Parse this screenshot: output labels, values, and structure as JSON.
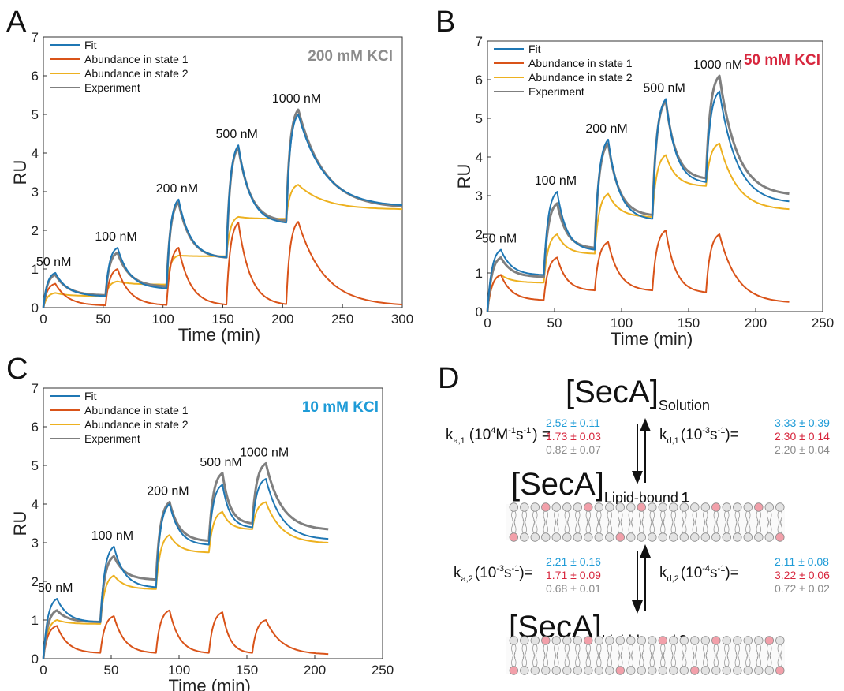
{
  "chart_data": [
    {
      "panel": "A",
      "type": "line",
      "condition": "200 mM KCl",
      "condition_color": "#8c8c8c",
      "xlabel": "Time (min)",
      "ylabel": "RU",
      "xlim": [
        0,
        300
      ],
      "ylim": [
        0,
        7
      ],
      "xticks": [
        0,
        50,
        100,
        150,
        200,
        250,
        300
      ],
      "yticks": [
        0,
        1,
        2,
        3,
        4,
        5,
        6,
        7
      ],
      "grid": false,
      "legend_position": "top-left",
      "injections": [
        {
          "start": 0,
          "stop": 10,
          "label": "50 nM"
        },
        {
          "start": 52,
          "stop": 62,
          "label": "100 nM"
        },
        {
          "start": 103,
          "stop": 113,
          "label": "200 nM"
        },
        {
          "start": 153,
          "stop": 163,
          "label": "500 nM"
        },
        {
          "start": 203,
          "stop": 213,
          "label": "1000 nM"
        }
      ],
      "x_end": 300,
      "series": [
        {
          "name": "Fit",
          "color": "#1f77b4",
          "peaks": [
            0.9,
            1.55,
            2.8,
            4.2,
            5.0
          ],
          "troughs": [
            0.3,
            0.5,
            1.3,
            2.2
          ],
          "end": 2.65
        },
        {
          "name": "Abundance in state 1",
          "color": "#d95319",
          "peaks": [
            0.62,
            1.0,
            1.55,
            2.2,
            2.22
          ],
          "troughs": [
            0.06,
            0.07,
            0.08,
            0.09
          ],
          "end": 0.08
        },
        {
          "name": "Abundance in state 2",
          "color": "#edb120",
          "peaks": [
            0.38,
            0.68,
            1.35,
            2.35,
            3.18
          ],
          "troughs": [
            0.3,
            0.6,
            1.33,
            2.3
          ],
          "end": 2.55
        },
        {
          "name": "Experiment",
          "color": "#7f7f7f",
          "peaks": [
            0.85,
            1.42,
            2.72,
            4.15,
            5.12
          ],
          "troughs": [
            0.32,
            0.55,
            1.3,
            2.25
          ],
          "end": 2.62
        }
      ]
    },
    {
      "panel": "B",
      "type": "line",
      "condition": "50 mM KCl",
      "condition_color": "#d7263d",
      "xlabel": "Time (min)",
      "ylabel": "RU",
      "xlim": [
        0,
        250
      ],
      "ylim": [
        0,
        7
      ],
      "xticks": [
        0,
        50,
        100,
        150,
        200,
        250
      ],
      "yticks": [
        0,
        1,
        2,
        3,
        4,
        5,
        6,
        7
      ],
      "grid": false,
      "legend_position": "top-left",
      "injections": [
        {
          "start": 0,
          "stop": 10,
          "label": "50 nM"
        },
        {
          "start": 42,
          "stop": 52,
          "label": "100 nM"
        },
        {
          "start": 80,
          "stop": 90,
          "label": "200 nM"
        },
        {
          "start": 123,
          "stop": 133,
          "label": "500 nM"
        },
        {
          "start": 163,
          "stop": 173,
          "label": "1000 nM"
        }
      ],
      "x_end": 225,
      "series": [
        {
          "name": "Fit",
          "color": "#1f77b4",
          "peaks": [
            1.6,
            3.1,
            4.45,
            5.5,
            5.7
          ],
          "troughs": [
            0.95,
            1.6,
            2.4,
            3.35
          ],
          "end": 2.85
        },
        {
          "name": "Abundance in state 1",
          "color": "#d95319",
          "peaks": [
            0.95,
            1.4,
            1.8,
            2.1,
            2.0
          ],
          "troughs": [
            0.3,
            0.55,
            0.55,
            0.5
          ],
          "end": 0.25
        },
        {
          "name": "Abundance in state 2",
          "color": "#edb120",
          "peaks": [
            0.95,
            2.0,
            3.05,
            4.05,
            4.35
          ],
          "troughs": [
            0.75,
            1.5,
            2.45,
            3.25
          ],
          "end": 2.65
        },
        {
          "name": "Experiment",
          "color": "#7f7f7f",
          "peaks": [
            1.4,
            2.8,
            4.35,
            5.45,
            6.1
          ],
          "troughs": [
            0.9,
            1.65,
            2.5,
            3.45
          ],
          "end": 3.05
        }
      ]
    },
    {
      "panel": "C",
      "type": "line",
      "condition": "10 mM KCl",
      "condition_color": "#1e9bd7",
      "xlabel": "Time (min)",
      "ylabel": "RU",
      "xlim": [
        0,
        250
      ],
      "ylim": [
        0,
        7
      ],
      "xticks": [
        0,
        50,
        100,
        150,
        200,
        250
      ],
      "yticks": [
        0,
        1,
        2,
        3,
        4,
        5,
        6,
        7
      ],
      "grid": false,
      "legend_position": "top-left",
      "injections": [
        {
          "start": 0,
          "stop": 10,
          "label": "50 nM"
        },
        {
          "start": 42,
          "stop": 52,
          "label": "100 nM"
        },
        {
          "start": 83,
          "stop": 93,
          "label": "200 nM"
        },
        {
          "start": 122,
          "stop": 132,
          "label": "500 nM"
        },
        {
          "start": 154,
          "stop": 164,
          "label": "1000 nM"
        }
      ],
      "x_end": 210,
      "series": [
        {
          "name": "Fit",
          "color": "#1f77b4",
          "peaks": [
            1.55,
            2.9,
            4.0,
            4.5,
            4.65
          ],
          "troughs": [
            0.95,
            1.85,
            2.95,
            3.4
          ],
          "end": 3.1
        },
        {
          "name": "Abundance in state 1",
          "color": "#d95319",
          "peaks": [
            0.85,
            1.1,
            1.25,
            1.2,
            1.0
          ],
          "troughs": [
            0.15,
            0.15,
            0.15,
            0.15
          ],
          "end": 0.12
        },
        {
          "name": "Abundance in state 2",
          "color": "#edb120",
          "peaks": [
            1.0,
            2.15,
            3.2,
            3.8,
            4.05
          ],
          "troughs": [
            0.9,
            1.8,
            2.75,
            3.35
          ],
          "end": 3.0
        },
        {
          "name": "Experiment",
          "color": "#7f7f7f",
          "peaks": [
            1.25,
            2.65,
            4.05,
            4.8,
            5.05
          ],
          "troughs": [
            0.95,
            2.05,
            3.05,
            3.5
          ],
          "end": 3.35
        }
      ]
    }
  ],
  "panel_letters": {
    "a": "A",
    "b": "B",
    "c": "C",
    "d": "D"
  },
  "scheme": {
    "solution_main": "[SecA]",
    "solution_sub": "Solution",
    "bound1_main": "[SecA]",
    "bound1_sub": "Lipid-bound",
    "bound1_num": "1",
    "bound2_main": "[SecA]",
    "bound2_sub": "Lipid-bound",
    "bound2_num": "2",
    "ka1": {
      "symbol": "k",
      "sub": "a,1",
      "units_pre": "(10",
      "units_exp1": "4",
      "units_mid": "M",
      "units_exp2": "-1",
      "units_s": "s",
      "units_exp3": "-1",
      "units_post": ") =",
      "values": [
        {
          "text": "2.52 ± 0.11",
          "color": "#1e9bd7"
        },
        {
          "text": "1.73 ± 0.03",
          "color": "#d7263d"
        },
        {
          "text": "0.82 ± 0.07",
          "color": "#8c8c8c"
        }
      ]
    },
    "kd1": {
      "symbol": "k",
      "sub": "d,1",
      "units_pre": "(10",
      "units_exp1": "-3",
      "units_s": "s",
      "units_exp2": "-1",
      "units_post": ")=",
      "values": [
        {
          "text": "3.33 ± 0.39",
          "color": "#1e9bd7"
        },
        {
          "text": "2.30 ± 0.14",
          "color": "#d7263d"
        },
        {
          "text": "2.20 ± 0.04",
          "color": "#8c8c8c"
        }
      ]
    },
    "ka2": {
      "symbol": "k",
      "sub": "a,2",
      "units_pre": "(10",
      "units_exp1": "-3",
      "units_s": "s",
      "units_exp2": "-1",
      "units_post": ")=",
      "values": [
        {
          "text": "2.21 ± 0.16",
          "color": "#1e9bd7"
        },
        {
          "text": "1.71 ± 0.09",
          "color": "#d7263d"
        },
        {
          "text": "0.68 ± 0.01",
          "color": "#8c8c8c"
        }
      ]
    },
    "kd2": {
      "symbol": "k",
      "sub": "d,2",
      "units_pre": "(10",
      "units_exp1": "-4",
      "units_s": "s",
      "units_exp2": "-1",
      "units_post": ")=",
      "values": [
        {
          "text": "2.11 ± 0.08",
          "color": "#1e9bd7"
        },
        {
          "text": "3.22 ± 0.06",
          "color": "#d7263d"
        },
        {
          "text": "0.72 ± 0.02",
          "color": "#8c8c8c"
        }
      ]
    }
  }
}
